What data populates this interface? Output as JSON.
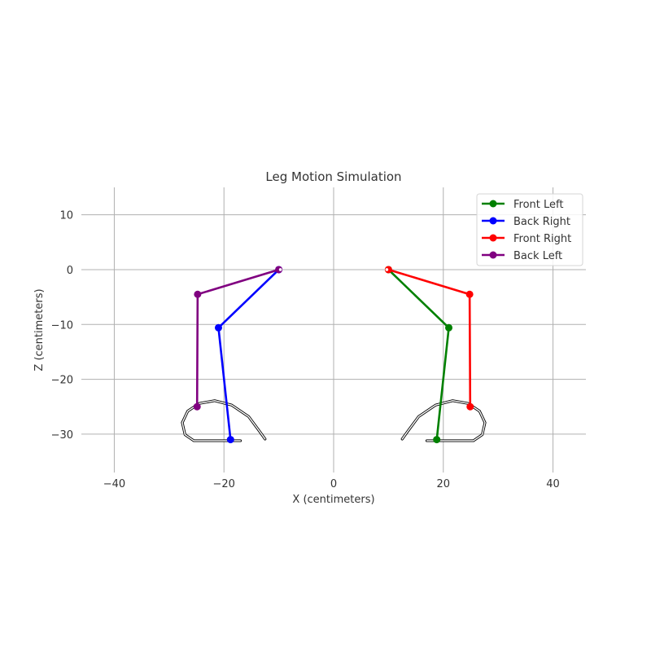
{
  "chart_data": {
    "type": "line",
    "title": "Leg Motion Simulation",
    "xlabel": "X (centimeters)",
    "ylabel": "Z (centimeters)",
    "xlim": [
      -46,
      46
    ],
    "ylim": [
      -37,
      15
    ],
    "xticks": [
      -40,
      -20,
      0,
      20,
      40
    ],
    "xtick_labels": [
      "−40",
      "−20",
      "0",
      "20",
      "40"
    ],
    "yticks": [
      10,
      0,
      -10,
      -20,
      -30
    ],
    "ytick_labels": [
      "10",
      "0",
      "−10",
      "−20",
      "−30"
    ],
    "grid": true,
    "legend_position": "top-right",
    "series": [
      {
        "name": "Front Left",
        "color": "#008000",
        "points": [
          [
            10,
            0
          ],
          [
            21,
            -10.6
          ],
          [
            18.8,
            -31
          ]
        ]
      },
      {
        "name": "Back Right",
        "color": "#0000ff",
        "points": [
          [
            -10,
            0
          ],
          [
            -21,
            -10.6
          ],
          [
            -18.8,
            -31
          ]
        ]
      },
      {
        "name": "Front Right",
        "color": "#ff0000",
        "points": [
          [
            10,
            0
          ],
          [
            24.8,
            -4.5
          ],
          [
            24.9,
            -25
          ]
        ]
      },
      {
        "name": "Back Left",
        "color": "#800080",
        "points": [
          [
            -10,
            0
          ],
          [
            -24.8,
            -4.5
          ],
          [
            -24.9,
            -25
          ]
        ]
      }
    ],
    "foot_trajectories": [
      {
        "side": "left",
        "points": [
          [
            -12.5,
            -30.9
          ],
          [
            -13.5,
            -29.5
          ],
          [
            -15.5,
            -26.8
          ],
          [
            -18.6,
            -24.7
          ],
          [
            -21.7,
            -23.9
          ],
          [
            -24.5,
            -24.4
          ],
          [
            -26.6,
            -25.8
          ],
          [
            -27.6,
            -27.9
          ],
          [
            -27.1,
            -30.1
          ],
          [
            -25.5,
            -31.2
          ],
          [
            -17,
            -31.2
          ]
        ]
      },
      {
        "side": "right",
        "points": [
          [
            12.5,
            -30.9
          ],
          [
            13.5,
            -29.5
          ],
          [
            15.5,
            -26.8
          ],
          [
            18.6,
            -24.7
          ],
          [
            21.7,
            -23.9
          ],
          [
            24.5,
            -24.4
          ],
          [
            26.6,
            -25.8
          ],
          [
            27.6,
            -27.9
          ],
          [
            27.1,
            -30.1
          ],
          [
            25.5,
            -31.2
          ],
          [
            17,
            -31.2
          ]
        ]
      }
    ]
  }
}
